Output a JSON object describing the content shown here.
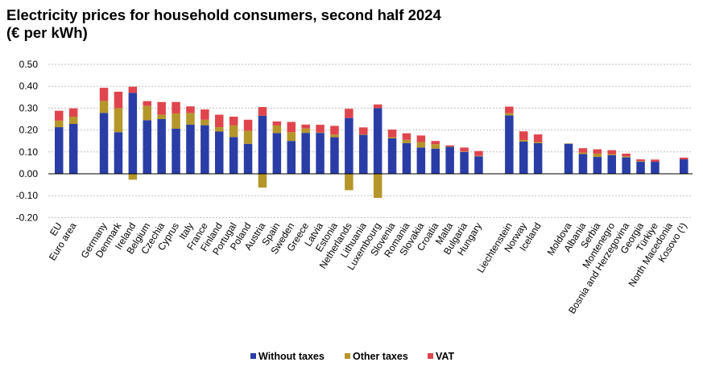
{
  "title_line1": "Electricity prices for household consumers, second half 2024",
  "title_line2": "(€ per kWh)",
  "colors": {
    "without_taxes": "#2a3da6",
    "other_taxes": "#b5962a",
    "vat": "#e0454d",
    "grid": "#bfbfbf",
    "axis": "#000000"
  },
  "chart_data": {
    "type": "bar",
    "stacked": true,
    "ylim": [
      -0.2,
      0.5
    ],
    "yticks": [
      "-0.20",
      "-0.10",
      "0.00",
      "0.10",
      "0.20",
      "0.30",
      "0.40",
      "0.50"
    ],
    "ytick_values": [
      -0.2,
      -0.1,
      0.0,
      0.1,
      0.2,
      0.3,
      0.4,
      0.5
    ],
    "grid": true,
    "legend_position": "bottom",
    "categories": [
      "EU",
      "Euro area",
      "Germany",
      "Denmark",
      "Ireland",
      "Belgium",
      "Czechia",
      "Cyprus",
      "Italy",
      "France",
      "Finland",
      "Portugal",
      "Poland",
      "Austria",
      "Spain",
      "Sweden",
      "Greece",
      "Latvia",
      "Estonia",
      "Netherlands",
      "Lithuania",
      "Luxembourg",
      "Slovenia",
      "Romania",
      "Slovakia",
      "Croatia",
      "Malta",
      "Bulgaria",
      "Hungary",
      "Liechtenstein",
      "Norway",
      "Iceland",
      "Moldova",
      "Albania",
      "Serbia",
      "Montenegro",
      "Bosnia and Herzegovina",
      "Georgia",
      "Türkiye",
      "North Macedonia",
      "Kosovo (¹)"
    ],
    "groups": [
      2,
      27,
      3,
      9
    ],
    "series": [
      {
        "name": "Without taxes",
        "color": "#2a3da6",
        "values": [
          0.213,
          0.228,
          0.278,
          0.19,
          0.37,
          0.245,
          0.25,
          0.206,
          0.225,
          0.222,
          0.193,
          0.168,
          0.137,
          0.265,
          0.186,
          0.15,
          0.187,
          0.187,
          0.167,
          0.255,
          0.178,
          0.3,
          0.162,
          0.14,
          0.12,
          0.115,
          0.123,
          0.1,
          0.08,
          0.267,
          0.147,
          0.14,
          0.137,
          0.09,
          0.077,
          0.085,
          0.075,
          0.055,
          0.055,
          null,
          0.066
        ]
      },
      {
        "name": "Other taxes",
        "color": "#b5962a",
        "values": [
          0.03,
          0.033,
          0.055,
          0.11,
          -0.027,
          0.065,
          0.02,
          0.07,
          0.053,
          0.025,
          0.02,
          0.053,
          0.06,
          -0.063,
          0.035,
          0.04,
          0.02,
          0.002,
          0.012,
          -0.075,
          0.002,
          -0.11,
          0.005,
          0.015,
          0.025,
          0.02,
          0.002,
          0.002,
          0.002,
          0.01,
          0.007,
          0.005,
          0.002,
          0.007,
          0.015,
          0.005,
          0.005,
          0.003,
          0.0,
          null,
          0.0
        ]
      },
      {
        "name": "VAT",
        "color": "#e0454d",
        "values": [
          0.045,
          0.038,
          0.06,
          0.075,
          0.028,
          0.022,
          0.058,
          0.052,
          0.03,
          0.047,
          0.057,
          0.04,
          0.05,
          0.04,
          0.018,
          0.047,
          0.018,
          0.035,
          0.04,
          0.042,
          0.032,
          0.017,
          0.035,
          0.03,
          0.03,
          0.015,
          0.005,
          0.018,
          0.022,
          0.03,
          0.04,
          0.035,
          0.0,
          0.02,
          0.02,
          0.018,
          0.012,
          0.008,
          0.01,
          null,
          0.008
        ]
      }
    ]
  }
}
